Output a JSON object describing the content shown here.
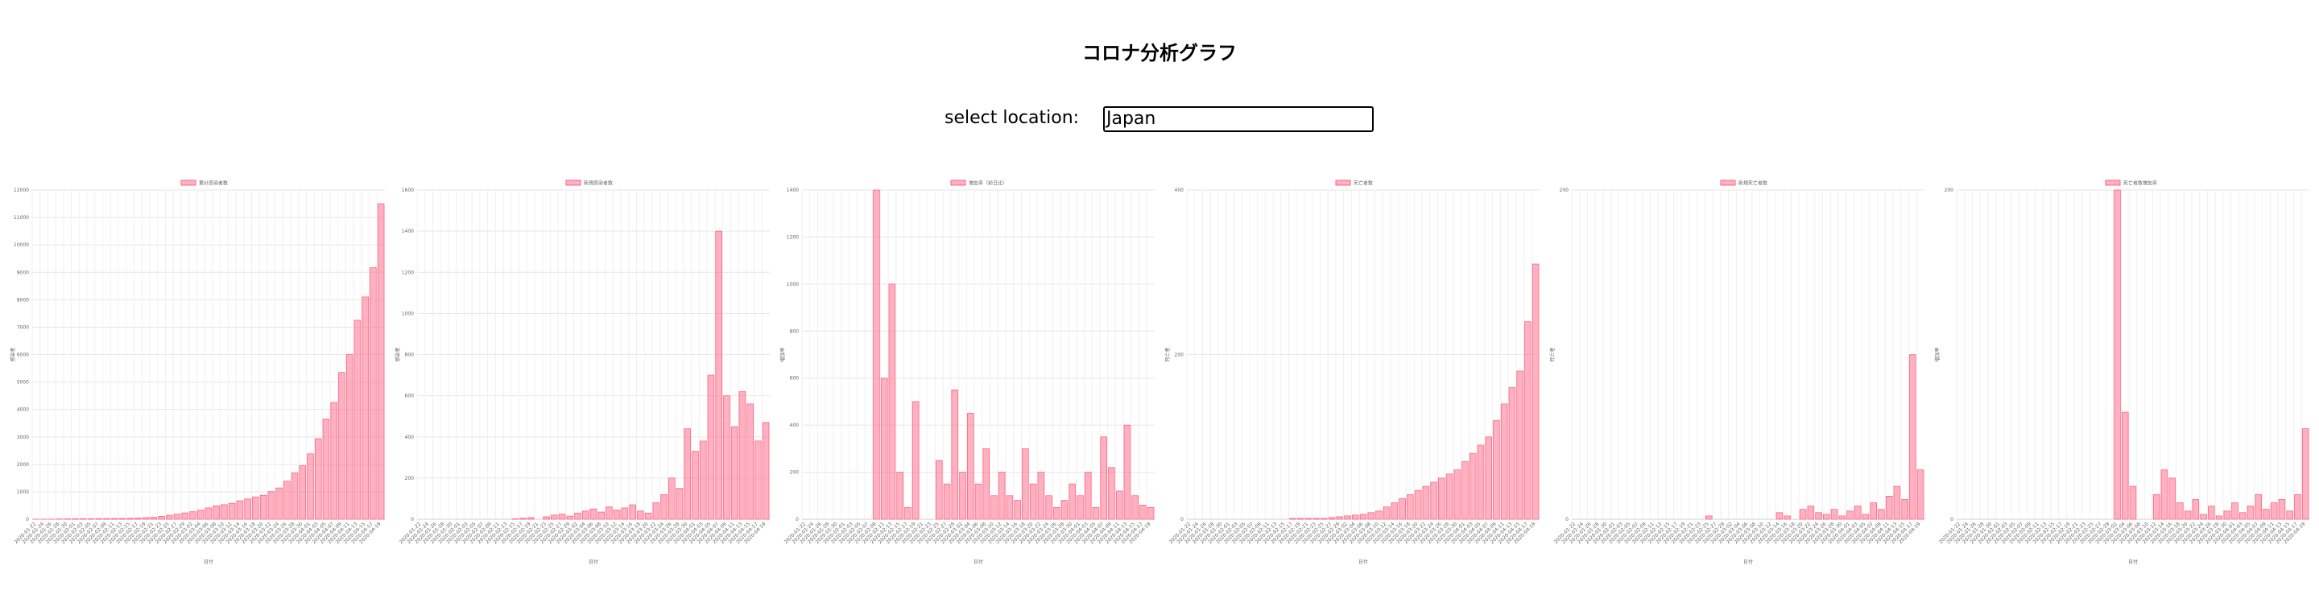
{
  "header": {
    "title": "コロナ分析グラフ"
  },
  "form": {
    "label": "select location:",
    "value": "Japan"
  },
  "chart_data": [
    {
      "type": "bar",
      "legend": "累計感染者数",
      "ylabel": "感染者",
      "xlabel": "日付",
      "color": "#ff6384",
      "grid": true,
      "categories": [
        "2020-01-22",
        "2020-01-24",
        "2020-01-26",
        "2020-01-28",
        "2020-01-30",
        "2020-02-01",
        "2020-02-03",
        "2020-02-05",
        "2020-02-07",
        "2020-02-09",
        "2020-02-11",
        "2020-02-13",
        "2020-02-15",
        "2020-02-17",
        "2020-02-19",
        "2020-02-21",
        "2020-02-23",
        "2020-02-25",
        "2020-02-27",
        "2020-02-29",
        "2020-03-02",
        "2020-03-04",
        "2020-03-06",
        "2020-03-08",
        "2020-03-10",
        "2020-03-12",
        "2020-03-14",
        "2020-03-16",
        "2020-03-18",
        "2020-03-20",
        "2020-03-22",
        "2020-03-24",
        "2020-03-26",
        "2020-03-28",
        "2020-03-30",
        "2020-04-01",
        "2020-04-03",
        "2020-04-05",
        "2020-04-07",
        "2020-04-09",
        "2020-04-11",
        "2020-04-13",
        "2020-04-15",
        "2020-04-17",
        "2020-04-19"
      ],
      "values": [
        2,
        3,
        4,
        11,
        14,
        17,
        20,
        20,
        22,
        25,
        26,
        28,
        33,
        41,
        59,
        73,
        105,
        144,
        186,
        230,
        274,
        331,
        414,
        488,
        530,
        581,
        674,
        737,
        814,
        873,
        1007,
        1140,
        1387,
        1693,
        1953,
        2384,
        2935,
        3654,
        4257,
        5347,
        6005,
        7255,
        8100,
        9167,
        11500
      ],
      "ylim": [
        0,
        12000
      ],
      "yticks": [
        0,
        1000,
        2000,
        3000,
        4000,
        5000,
        6000,
        7000,
        8000,
        9000,
        10000,
        11000,
        12000
      ]
    },
    {
      "type": "bar",
      "legend": "新規感染者数",
      "ylabel": "感染者",
      "xlabel": "日付",
      "color": "#ff6384",
      "grid": true,
      "categories": [
        "2020-01-22",
        "2020-01-24",
        "2020-01-26",
        "2020-01-28",
        "2020-01-30",
        "2020-02-01",
        "2020-02-03",
        "2020-02-05",
        "2020-02-07",
        "2020-02-09",
        "2020-02-11",
        "2020-02-13",
        "2020-02-15",
        "2020-02-17",
        "2020-02-19",
        "2020-02-21",
        "2020-02-23",
        "2020-02-25",
        "2020-02-27",
        "2020-02-29",
        "2020-03-02",
        "2020-03-04",
        "2020-03-06",
        "2020-03-08",
        "2020-03-10",
        "2020-03-12",
        "2020-03-14",
        "2020-03-16",
        "2020-03-18",
        "2020-03-20",
        "2020-03-22",
        "2020-03-24",
        "2020-03-26",
        "2020-03-28",
        "2020-03-30",
        "2020-04-01",
        "2020-04-03",
        "2020-04-05",
        "2020-04-07",
        "2020-04-09",
        "2020-04-11",
        "2020-04-13",
        "2020-04-15",
        "2020-04-17",
        "2020-04-19"
      ],
      "values": [
        0,
        0,
        0,
        0,
        0,
        0,
        0,
        0,
        0,
        0,
        0,
        0,
        2,
        5,
        8,
        0,
        12,
        20,
        25,
        15,
        30,
        40,
        50,
        35,
        60,
        45,
        55,
        70,
        40,
        30,
        80,
        120,
        200,
        150,
        440,
        330,
        380,
        700,
        1400,
        600,
        450,
        620,
        560,
        380,
        470
      ],
      "ylim": [
        0,
        1600
      ],
      "yticks": [
        0,
        200,
        400,
        600,
        800,
        1000,
        1200,
        1400,
        1600
      ]
    },
    {
      "type": "bar",
      "legend": "増加率（前日比）",
      "ylabel": "増加率",
      "xlabel": "日付",
      "color": "#ff6384",
      "grid": true,
      "categories": [
        "2020-01-22",
        "2020-01-24",
        "2020-01-26",
        "2020-01-28",
        "2020-01-30",
        "2020-02-01",
        "2020-02-03",
        "2020-02-05",
        "2020-02-07",
        "2020-02-09",
        "2020-02-11",
        "2020-02-13",
        "2020-02-15",
        "2020-02-17",
        "2020-02-19",
        "2020-02-21",
        "2020-02-23",
        "2020-02-25",
        "2020-02-27",
        "2020-02-29",
        "2020-03-02",
        "2020-03-04",
        "2020-03-06",
        "2020-03-08",
        "2020-03-10",
        "2020-03-12",
        "2020-03-14",
        "2020-03-16",
        "2020-03-18",
        "2020-03-20",
        "2020-03-22",
        "2020-03-24",
        "2020-03-26",
        "2020-03-28",
        "2020-03-30",
        "2020-04-01",
        "2020-04-03",
        "2020-04-05",
        "2020-04-07",
        "2020-04-09",
        "2020-04-11",
        "2020-04-13",
        "2020-04-15",
        "2020-04-17",
        "2020-04-19"
      ],
      "values": [
        0,
        0,
        0,
        0,
        0,
        0,
        0,
        0,
        0,
        1400,
        600,
        1000,
        200,
        50,
        500,
        0,
        0,
        250,
        150,
        550,
        200,
        450,
        150,
        300,
        100,
        200,
        100,
        80,
        300,
        150,
        200,
        100,
        50,
        80,
        150,
        100,
        200,
        50,
        350,
        220,
        120,
        400,
        100,
        60,
        50
      ],
      "ylim": [
        0,
        1400
      ],
      "yticks": [
        0,
        200,
        400,
        600,
        800,
        1000,
        1200,
        1400
      ]
    },
    {
      "type": "bar",
      "legend": "死亡者数",
      "ylabel": "死亡者",
      "xlabel": "日付",
      "color": "#ff6384",
      "grid": true,
      "categories": [
        "2020-01-22",
        "2020-01-24",
        "2020-01-26",
        "2020-01-28",
        "2020-01-30",
        "2020-02-01",
        "2020-02-03",
        "2020-02-05",
        "2020-02-07",
        "2020-02-09",
        "2020-02-11",
        "2020-02-13",
        "2020-02-15",
        "2020-02-17",
        "2020-02-19",
        "2020-02-21",
        "2020-02-23",
        "2020-02-25",
        "2020-02-27",
        "2020-02-29",
        "2020-03-02",
        "2020-03-04",
        "2020-03-06",
        "2020-03-08",
        "2020-03-10",
        "2020-03-12",
        "2020-03-14",
        "2020-03-16",
        "2020-03-18",
        "2020-03-20",
        "2020-03-22",
        "2020-03-24",
        "2020-03-26",
        "2020-03-28",
        "2020-03-30",
        "2020-04-01",
        "2020-04-03",
        "2020-04-05",
        "2020-04-07",
        "2020-04-09",
        "2020-04-11",
        "2020-04-13",
        "2020-04-15",
        "2020-04-17",
        "2020-04-19"
      ],
      "values": [
        0,
        0,
        0,
        0,
        0,
        0,
        0,
        0,
        0,
        0,
        0,
        0,
        0,
        1,
        1,
        1,
        1,
        1,
        2,
        3,
        4,
        5,
        6,
        8,
        10,
        15,
        20,
        25,
        30,
        35,
        40,
        45,
        50,
        55,
        60,
        70,
        80,
        90,
        100,
        120,
        140,
        160,
        180,
        240,
        310
      ],
      "ylim": [
        0,
        400
      ],
      "yticks": [
        0,
        200,
        400
      ]
    },
    {
      "type": "bar",
      "legend": "新規死亡者数",
      "ylabel": "死亡者",
      "xlabel": "日付",
      "color": "#ff6384",
      "grid": true,
      "categories": [
        "2020-01-22",
        "2020-01-24",
        "2020-01-26",
        "2020-01-28",
        "2020-01-30",
        "2020-02-01",
        "2020-02-03",
        "2020-02-05",
        "2020-02-07",
        "2020-02-09",
        "2020-02-11",
        "2020-02-13",
        "2020-02-15",
        "2020-02-17",
        "2020-02-19",
        "2020-02-21",
        "2020-02-23",
        "2020-02-25",
        "2020-02-27",
        "2020-02-29",
        "2020-03-02",
        "2020-03-04",
        "2020-03-06",
        "2020-03-08",
        "2020-03-10",
        "2020-03-12",
        "2020-03-14",
        "2020-03-16",
        "2020-03-18",
        "2020-03-20",
        "2020-03-22",
        "2020-03-24",
        "2020-03-26",
        "2020-03-28",
        "2020-03-30",
        "2020-04-01",
        "2020-04-03",
        "2020-04-05",
        "2020-04-07",
        "2020-04-09",
        "2020-04-11",
        "2020-04-13",
        "2020-04-15",
        "2020-04-17",
        "2020-04-19"
      ],
      "values": [
        0,
        0,
        0,
        0,
        0,
        0,
        0,
        0,
        0,
        0,
        0,
        0,
        0,
        0,
        0,
        0,
        0,
        2,
        0,
        0,
        0,
        0,
        0,
        0,
        0,
        0,
        4,
        2,
        0,
        6,
        8,
        4,
        3,
        6,
        2,
        5,
        8,
        3,
        10,
        6,
        14,
        20,
        12,
        100,
        30
      ],
      "ylim": [
        0,
        200
      ],
      "yticks": [
        0,
        200
      ]
    },
    {
      "type": "bar",
      "legend": "死亡者数増加率",
      "ylabel": "増加率",
      "xlabel": "日付",
      "color": "#ff6384",
      "grid": true,
      "categories": [
        "2020-01-22",
        "2020-01-24",
        "2020-01-26",
        "2020-01-28",
        "2020-01-30",
        "2020-02-01",
        "2020-02-03",
        "2020-02-05",
        "2020-02-07",
        "2020-02-09",
        "2020-02-11",
        "2020-02-13",
        "2020-02-15",
        "2020-02-17",
        "2020-02-19",
        "2020-02-21",
        "2020-02-23",
        "2020-02-25",
        "2020-02-27",
        "2020-02-29",
        "2020-03-02",
        "2020-03-04",
        "2020-03-06",
        "2020-03-08",
        "2020-03-10",
        "2020-03-12",
        "2020-03-14",
        "2020-03-16",
        "2020-03-18",
        "2020-03-20",
        "2020-03-22",
        "2020-03-24",
        "2020-03-26",
        "2020-03-28",
        "2020-03-30",
        "2020-04-01",
        "2020-04-03",
        "2020-04-05",
        "2020-04-07",
        "2020-04-09",
        "2020-04-11",
        "2020-04-13",
        "2020-04-15",
        "2020-04-17",
        "2020-04-19"
      ],
      "values": [
        0,
        0,
        0,
        0,
        0,
        0,
        0,
        0,
        0,
        0,
        0,
        0,
        0,
        0,
        0,
        0,
        0,
        0,
        0,
        0,
        200,
        65,
        20,
        0,
        0,
        15,
        30,
        25,
        10,
        5,
        12,
        3,
        8,
        2,
        5,
        10,
        4,
        8,
        15,
        6,
        10,
        12,
        5,
        15,
        55
      ],
      "ylim": [
        0,
        200
      ],
      "yticks": [
        0,
        200
      ]
    }
  ]
}
